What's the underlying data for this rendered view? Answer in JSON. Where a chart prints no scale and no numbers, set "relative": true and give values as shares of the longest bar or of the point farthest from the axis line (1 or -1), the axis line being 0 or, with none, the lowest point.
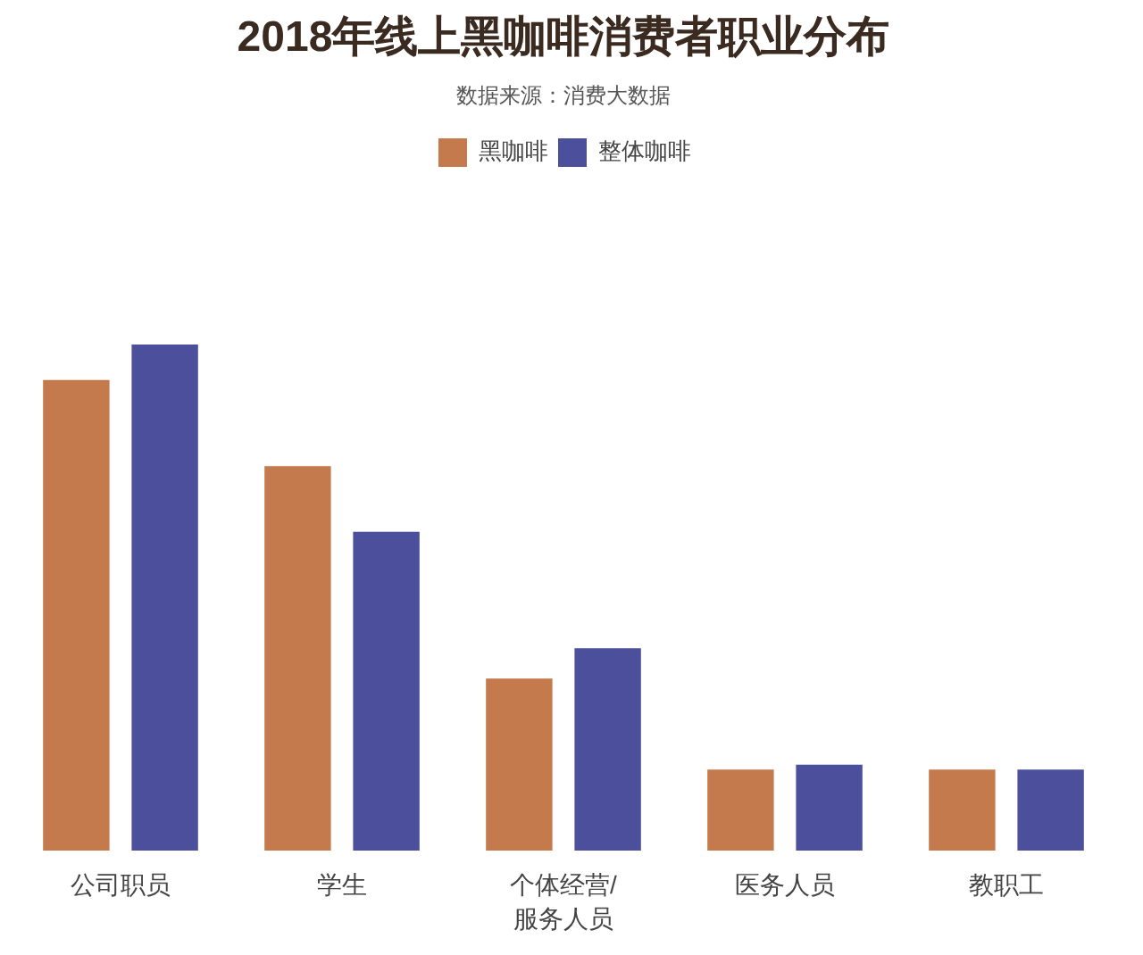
{
  "chart_data": {
    "type": "bar",
    "title": "2018年线上黑咖啡消费者职业分布",
    "annotations": [
      "数据来源：消费大数据"
    ],
    "categories": [
      "公司职员",
      "学生",
      "个体经营/服务人员",
      "医务人员",
      "教职工"
    ],
    "relative": true,
    "legend": "top",
    "grid": false,
    "series": [
      {
        "name": "黑咖啡",
        "color": "#c47a4c",
        "values": [
          0.93,
          0.76,
          0.34,
          0.16,
          0.16
        ]
      },
      {
        "name": "整体咖啡",
        "color": "#4b4f9c",
        "values": [
          1,
          0.63,
          0.4,
          0.17,
          0.16
        ]
      }
    ]
  }
}
